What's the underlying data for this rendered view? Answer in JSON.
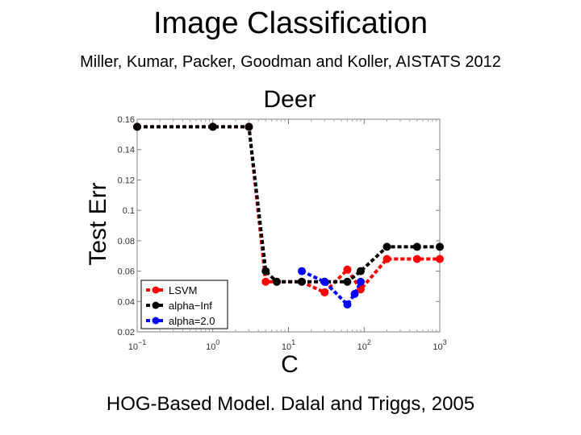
{
  "slide": {
    "title": "Image Classification",
    "subtitle": "Miller, Kumar, Packer, Goodman and Koller, AISTATS 2012",
    "footer": "HOG-Based Model. Dalal and Triggs, 2005"
  },
  "chart_data": {
    "type": "line",
    "title": "Deer",
    "xlabel": "C",
    "ylabel": "Test Err",
    "x_scale": "log",
    "xlim": [
      0.1,
      1000
    ],
    "ylim": [
      0.02,
      0.16
    ],
    "yticks": [
      "0.02",
      "0.04",
      "0.06",
      "0.08",
      "0.1",
      "0.12",
      "0.14",
      "0.16"
    ],
    "xticks": [
      {
        "base": "10",
        "exp": "−1",
        "value": 0.1
      },
      {
        "base": "10",
        "exp": "0",
        "value": 1
      },
      {
        "base": "10",
        "exp": "1",
        "value": 10
      },
      {
        "base": "10",
        "exp": "2",
        "value": 100
      },
      {
        "base": "10",
        "exp": "3",
        "value": 1000
      }
    ],
    "grid": false,
    "legend_position": "bottom-left",
    "series": [
      {
        "name": "LSVM",
        "color": "#ff0000",
        "x": [
          0.1,
          1,
          3,
          5,
          7,
          15,
          30,
          60,
          90,
          200,
          500,
          1000
        ],
        "y": [
          0.155,
          0.155,
          0.155,
          0.053,
          0.053,
          0.053,
          0.046,
          0.061,
          0.048,
          0.068,
          0.068,
          0.068
        ]
      },
      {
        "name": "alpha−Inf",
        "color": "#000000",
        "x": [
          0.1,
          1,
          3,
          5,
          7,
          15,
          30,
          60,
          90,
          200,
          500,
          1000
        ],
        "y": [
          0.155,
          0.155,
          0.155,
          0.06,
          0.053,
          0.053,
          0.053,
          0.053,
          0.06,
          0.076,
          0.076,
          0.076
        ]
      },
      {
        "name": "alpha=2.0",
        "color": "#0000ff",
        "x": [
          15,
          30,
          60,
          75,
          90
        ],
        "y": [
          0.06,
          0.053,
          0.038,
          0.045,
          0.053
        ]
      }
    ]
  }
}
